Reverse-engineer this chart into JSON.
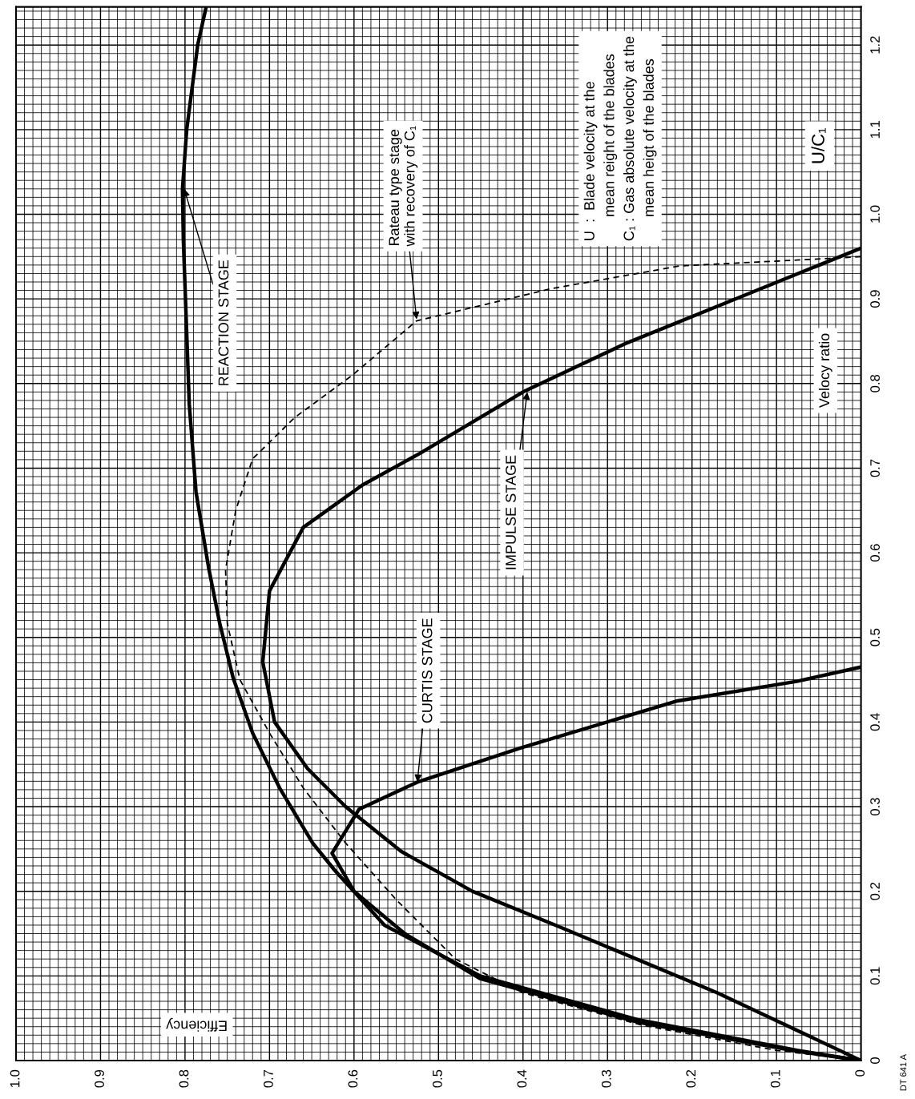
{
  "chart_data": {
    "type": "line",
    "xlabel": "Efficiency",
    "ylabel": "Velocy ratio",
    "xlim": [
      1.0,
      0
    ],
    "ylim": [
      0,
      1.245
    ],
    "xticks": [
      {
        "value": 1,
        "label": "1.0"
      },
      0.9,
      0.8,
      0.7,
      0.6,
      0.5,
      0.4,
      0.3,
      0.2,
      0.1,
      0
    ],
    "yticks": [
      0,
      0.1,
      0.2,
      0.3,
      0.4,
      0.5,
      0.6,
      0.7,
      0.8,
      0.9,
      {
        "value": 1,
        "label": "1.0"
      },
      1.1,
      1.2
    ],
    "grid": true,
    "legend": false,
    "series": [
      {
        "color": "#000000",
        "line_style": "solid",
        "x": [
          0,
          0.076,
          0.263,
          0.451,
          0.564,
          0.623,
          0.649,
          0.688,
          0.72,
          0.743,
          0.759,
          0.772,
          0.787,
          0.795,
          0.802,
          0.803,
          0.798,
          0.785,
          0.775
        ],
        "values": [
          0,
          0.012,
          0.048,
          0.1,
          0.16,
          0.225,
          0.257,
          0.322,
          0.387,
          0.452,
          0.517,
          0.582,
          0.672,
          0.776,
          0.971,
          1.03,
          1.1,
          1.2,
          1.245
        ]
      },
      {
        "color": "#000000",
        "line_style": "solid",
        "x": [
          0,
          0.17,
          0.357,
          0.46,
          0.544,
          0.61,
          0.655,
          0.694,
          0.708,
          0.7,
          0.66,
          0.59,
          0.521,
          0.4,
          0.277,
          0.141,
          0
        ],
        "values": [
          0,
          0.08,
          0.158,
          0.2,
          0.247,
          0.3,
          0.345,
          0.4,
          0.471,
          0.555,
          0.63,
          0.68,
          0.718,
          0.79,
          0.848,
          0.903,
          0.96
        ]
      },
      {
        "color": "#000000",
        "line_style": "solid",
        "x": [
          0,
          0.076,
          0.263,
          0.451,
          0.54,
          0.6,
          0.626,
          0.594,
          0.525,
          0.404,
          0.217,
          0.076,
          0
        ],
        "values": [
          0,
          0.011,
          0.045,
          0.097,
          0.15,
          0.2,
          0.245,
          0.297,
          0.329,
          0.369,
          0.425,
          0.448,
          0.465
        ]
      },
      {
        "color": "#000000",
        "line_style": "dashed",
        "x": [
          0,
          0.1,
          0.26,
          0.4,
          0.48,
          0.55,
          0.61,
          0.66,
          0.7,
          0.735,
          0.75,
          0.752,
          0.74,
          0.72,
          0.67,
          0.603,
          0.526,
          0.367,
          0.214,
          0.033,
          0
        ],
        "values": [
          0,
          0.012,
          0.042,
          0.08,
          0.12,
          0.19,
          0.257,
          0.322,
          0.387,
          0.45,
          0.517,
          0.58,
          0.65,
          0.711,
          0.76,
          0.809,
          0.874,
          0.912,
          0.939,
          0.948,
          0.95
        ]
      }
    ],
    "annotations": [
      {
        "text": "REACTION STAGE",
        "x": 0.801,
        "y": 1.03
      },
      {
        "text": "Rateau type stage\nwith recovery of C₁",
        "x": 0.526,
        "y": 0.876
      },
      {
        "text": "IMPULSE STAGE",
        "x": 0.395,
        "y": 0.79
      },
      {
        "text": "CURTIS STAGE",
        "x": 0.525,
        "y": 0.329
      },
      "U  :  Blade velocity at the\n      mean reight of the blades\nC₁ : Gas absolute velocity at the\n      mean heigt of the blades",
      "U/C₁",
      "DT 641 A"
    ]
  }
}
